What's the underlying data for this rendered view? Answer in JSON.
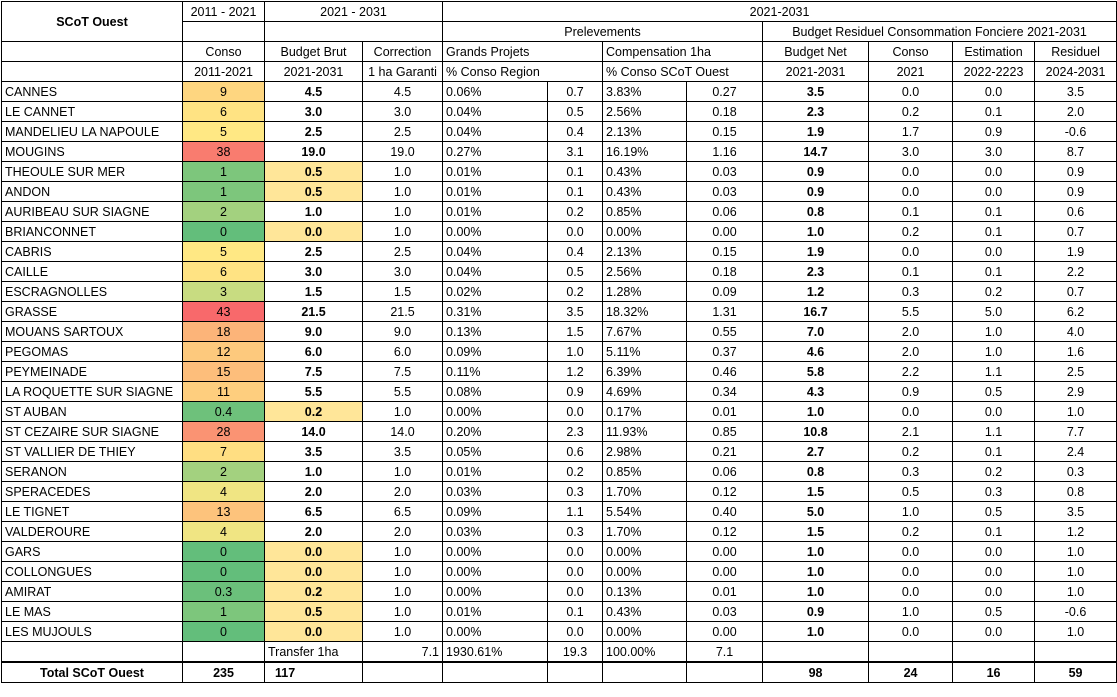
{
  "header": {
    "title": "SCoT Ouest",
    "period_2011": "2011 - 2021",
    "period_2021": "2021 - 2031",
    "period_2021b": "2021-2031",
    "prelevements": "Prelevements",
    "budget_residuel": "Budget Residuel Consommation Fonciere  2021-2031",
    "h_conso": "Conso",
    "h_budget_brut": "Budget Brut",
    "h_correction": "Correction",
    "h_grands_projets": "Grands Projets",
    "h_compensation": "Compensation 1ha",
    "h_budget_net": "Budget Net",
    "h_conso2": "Conso",
    "h_estimation": "Estimation",
    "h_residuel": "Residuel",
    "s_conso": "2011-2021",
    "s_budget_brut": "2021-2031",
    "s_correction": "1 ha Garanti",
    "s_grands_projets": "% Conso Region",
    "s_compensation": "% Conso SCoT Ouest",
    "s_budget_net": "2021-2031",
    "s_conso2": "2021",
    "s_estimation": "2022-2223",
    "s_residuel": "2024-2031"
  },
  "colors": {
    "red": "#f8696b",
    "orange_red": "#fa9a73",
    "orange": "#fdbf7b",
    "yellow": "#ffe283",
    "light_yellow": "#ffeb84",
    "yellow_green": "#d3df82",
    "light_green": "#b1d580",
    "green": "#63be7b",
    "budget_yellow": "#ffe699"
  },
  "rows": [
    {
      "name": "CANNES",
      "conso": "9",
      "conso_color": "#fed680",
      "brut": "4.5",
      "brut_hl": false,
      "corr": "4.5",
      "gp_pct": "0.06%",
      "gp": "0.7",
      "comp_pct": "3.83%",
      "comp": "0.27",
      "net": "3.5",
      "c21": "0.0",
      "est": "0.0",
      "res": "3.5"
    },
    {
      "name": "LE CANNET",
      "conso": "6",
      "conso_color": "#ffe383",
      "brut": "3.0",
      "brut_hl": false,
      "corr": "3.0",
      "gp_pct": "0.04%",
      "gp": "0.5",
      "comp_pct": "2.56%",
      "comp": "0.18",
      "net": "2.3",
      "c21": "0.2",
      "est": "0.1",
      "res": "2.0"
    },
    {
      "name": "MANDELIEU LA NAPOULE",
      "conso": "5",
      "conso_color": "#ffe884",
      "brut": "2.5",
      "brut_hl": false,
      "corr": "2.5",
      "gp_pct": "0.04%",
      "gp": "0.4",
      "comp_pct": "2.13%",
      "comp": "0.15",
      "net": "1.9",
      "c21": "1.7",
      "est": "0.9",
      "res": "-0.6"
    },
    {
      "name": "MOUGINS",
      "conso": "38",
      "conso_color": "#f97c6f",
      "brut": "19.0",
      "brut_hl": false,
      "corr": "19.0",
      "gp_pct": "0.27%",
      "gp": "3.1",
      "comp_pct": "16.19%",
      "comp": "1.16",
      "net": "14.7",
      "c21": "3.0",
      "est": "3.0",
      "res": "8.7"
    },
    {
      "name": "THEOULE SUR MER",
      "conso": "1",
      "conso_color": "#7dc67c",
      "brut": "0.5",
      "brut_hl": true,
      "corr": "1.0",
      "gp_pct": "0.01%",
      "gp": "0.1",
      "comp_pct": "0.43%",
      "comp": "0.03",
      "net": "0.9",
      "c21": "0.0",
      "est": "0.0",
      "res": "0.9"
    },
    {
      "name": "ANDON",
      "conso": "1",
      "conso_color": "#7dc67c",
      "brut": "0.5",
      "brut_hl": true,
      "corr": "1.0",
      "gp_pct": "0.01%",
      "gp": "0.1",
      "comp_pct": "0.43%",
      "comp": "0.03",
      "net": "0.9",
      "c21": "0.0",
      "est": "0.0",
      "res": "0.9"
    },
    {
      "name": "AURIBEAU SUR SIAGNE",
      "conso": "2",
      "conso_color": "#a3d17f",
      "brut": "1.0",
      "brut_hl": false,
      "corr": "1.0",
      "gp_pct": "0.01%",
      "gp": "0.2",
      "comp_pct": "0.85%",
      "comp": "0.06",
      "net": "0.8",
      "c21": "0.1",
      "est": "0.1",
      "res": "0.6"
    },
    {
      "name": "BRIANCONNET",
      "conso": "0",
      "conso_color": "#63be7b",
      "brut": "0.0",
      "brut_hl": true,
      "corr": "1.0",
      "gp_pct": "0.00%",
      "gp": "0.0",
      "comp_pct": "0.00%",
      "comp": "0.00",
      "net": "1.0",
      "c21": "0.2",
      "est": "0.1",
      "res": "0.7"
    },
    {
      "name": "CABRIS",
      "conso": "5",
      "conso_color": "#ffe884",
      "brut": "2.5",
      "brut_hl": false,
      "corr": "2.5",
      "gp_pct": "0.04%",
      "gp": "0.4",
      "comp_pct": "2.13%",
      "comp": "0.15",
      "net": "1.9",
      "c21": "0.0",
      "est": "0.0",
      "res": "1.9"
    },
    {
      "name": "CAILLE",
      "conso": "6",
      "conso_color": "#ffe383",
      "brut": "3.0",
      "brut_hl": false,
      "corr": "3.0",
      "gp_pct": "0.04%",
      "gp": "0.5",
      "comp_pct": "2.56%",
      "comp": "0.18",
      "net": "2.3",
      "c21": "0.1",
      "est": "0.1",
      "res": "2.2"
    },
    {
      "name": "ESCRAGNOLLES",
      "conso": "3",
      "conso_color": "#c8dc81",
      "brut": "1.5",
      "brut_hl": false,
      "corr": "1.5",
      "gp_pct": "0.02%",
      "gp": "0.2",
      "comp_pct": "1.28%",
      "comp": "0.09",
      "net": "1.2",
      "c21": "0.3",
      "est": "0.2",
      "res": "0.7"
    },
    {
      "name": "GRASSE",
      "conso": "43",
      "conso_color": "#f8696b",
      "brut": "21.5",
      "brut_hl": false,
      "corr": "21.5",
      "gp_pct": "0.31%",
      "gp": "3.5",
      "comp_pct": "18.32%",
      "comp": "1.31",
      "net": "16.7",
      "c21": "5.5",
      "est": "5.0",
      "res": "6.2"
    },
    {
      "name": "MOUANS SARTOUX",
      "conso": "18",
      "conso_color": "#fcb479",
      "brut": "9.0",
      "brut_hl": false,
      "corr": "9.0",
      "gp_pct": "0.13%",
      "gp": "1.5",
      "comp_pct": "7.67%",
      "comp": "0.55",
      "net": "7.0",
      "c21": "2.0",
      "est": "1.0",
      "res": "4.0"
    },
    {
      "name": "PEGOMAS",
      "conso": "12",
      "conso_color": "#fdc97d",
      "brut": "6.0",
      "brut_hl": false,
      "corr": "6.0",
      "gp_pct": "0.09%",
      "gp": "1.0",
      "comp_pct": "5.11%",
      "comp": "0.37",
      "net": "4.6",
      "c21": "2.0",
      "est": "1.0",
      "res": "1.6"
    },
    {
      "name": "PEYMEINADE",
      "conso": "15",
      "conso_color": "#fdbe7b",
      "brut": "7.5",
      "brut_hl": false,
      "corr": "7.5",
      "gp_pct": "0.11%",
      "gp": "1.2",
      "comp_pct": "6.39%",
      "comp": "0.46",
      "net": "5.8",
      "c21": "2.2",
      "est": "1.1",
      "res": "2.5"
    },
    {
      "name": "LA ROQUETTE SUR SIAGNE",
      "conso": "11",
      "conso_color": "#fece7e",
      "brut": "5.5",
      "brut_hl": false,
      "corr": "5.5",
      "gp_pct": "0.08%",
      "gp": "0.9",
      "comp_pct": "4.69%",
      "comp": "0.34",
      "net": "4.3",
      "c21": "0.9",
      "est": "0.5",
      "res": "2.9"
    },
    {
      "name": "ST AUBAN",
      "conso": "0.4",
      "conso_color": "#6ec17b",
      "brut": "0.2",
      "brut_hl": true,
      "corr": "1.0",
      "gp_pct": "0.00%",
      "gp": "0.0",
      "comp_pct": "0.17%",
      "comp": "0.01",
      "net": "1.0",
      "c21": "0.0",
      "est": "0.0",
      "res": "1.0"
    },
    {
      "name": "ST CEZAIRE SUR SIAGNE",
      "conso": "28",
      "conso_color": "#fa9373",
      "brut": "14.0",
      "brut_hl": false,
      "corr": "14.0",
      "gp_pct": "0.20%",
      "gp": "2.3",
      "comp_pct": "11.93%",
      "comp": "0.85",
      "net": "10.8",
      "c21": "2.1",
      "est": "1.1",
      "res": "7.7"
    },
    {
      "name": "ST VALLIER DE THIEY",
      "conso": "7",
      "conso_color": "#ffde82",
      "brut": "3.5",
      "brut_hl": false,
      "corr": "3.5",
      "gp_pct": "0.05%",
      "gp": "0.6",
      "comp_pct": "2.98%",
      "comp": "0.21",
      "net": "2.7",
      "c21": "0.2",
      "est": "0.1",
      "res": "2.4"
    },
    {
      "name": "SERANON",
      "conso": "2",
      "conso_color": "#a3d17f",
      "brut": "1.0",
      "brut_hl": false,
      "corr": "1.0",
      "gp_pct": "0.01%",
      "gp": "0.2",
      "comp_pct": "0.85%",
      "comp": "0.06",
      "net": "0.8",
      "c21": "0.3",
      "est": "0.2",
      "res": "0.3"
    },
    {
      "name": "SPERACEDES",
      "conso": "4",
      "conso_color": "#f0e583",
      "brut": "2.0",
      "brut_hl": false,
      "corr": "2.0",
      "gp_pct": "0.03%",
      "gp": "0.3",
      "comp_pct": "1.70%",
      "comp": "0.12",
      "net": "1.5",
      "c21": "0.5",
      "est": "0.3",
      "res": "0.8"
    },
    {
      "name": "LE TIGNET",
      "conso": "13",
      "conso_color": "#fdc37c",
      "brut": "6.5",
      "brut_hl": false,
      "corr": "6.5",
      "gp_pct": "0.09%",
      "gp": "1.1",
      "comp_pct": "5.54%",
      "comp": "0.40",
      "net": "5.0",
      "c21": "1.0",
      "est": "0.5",
      "res": "3.5"
    },
    {
      "name": "VALDEROURE",
      "conso": "4",
      "conso_color": "#f0e583",
      "brut": "2.0",
      "brut_hl": false,
      "corr": "2.0",
      "gp_pct": "0.03%",
      "gp": "0.3",
      "comp_pct": "1.70%",
      "comp": "0.12",
      "net": "1.5",
      "c21": "0.2",
      "est": "0.1",
      "res": "1.2"
    },
    {
      "name": "GARS",
      "conso": "0",
      "conso_color": "#63be7b",
      "brut": "0.0",
      "brut_hl": true,
      "corr": "1.0",
      "gp_pct": "0.00%",
      "gp": "0.0",
      "comp_pct": "0.00%",
      "comp": "0.00",
      "net": "1.0",
      "c21": "0.0",
      "est": "0.0",
      "res": "1.0"
    },
    {
      "name": "COLLONGUES",
      "conso": "0",
      "conso_color": "#63be7b",
      "brut": "0.0",
      "brut_hl": true,
      "corr": "1.0",
      "gp_pct": "0.00%",
      "gp": "0.0",
      "comp_pct": "0.00%",
      "comp": "0.00",
      "net": "1.0",
      "c21": "0.0",
      "est": "0.0",
      "res": "1.0"
    },
    {
      "name": "AMIRAT",
      "conso": "0.3",
      "conso_color": "#6bc07b",
      "brut": "0.2",
      "brut_hl": true,
      "corr": "1.0",
      "gp_pct": "0.00%",
      "gp": "0.0",
      "comp_pct": "0.13%",
      "comp": "0.01",
      "net": "1.0",
      "c21": "0.0",
      "est": "0.0",
      "res": "1.0"
    },
    {
      "name": "LE MAS",
      "conso": "1",
      "conso_color": "#7dc67c",
      "brut": "0.5",
      "brut_hl": true,
      "corr": "1.0",
      "gp_pct": "0.01%",
      "gp": "0.1",
      "comp_pct": "0.43%",
      "comp": "0.03",
      "net": "0.9",
      "c21": "1.0",
      "est": "0.5",
      "res": "-0.6"
    },
    {
      "name": "LES MUJOULS",
      "conso": "0",
      "conso_color": "#63be7b",
      "brut": "0.0",
      "brut_hl": true,
      "corr": "1.0",
      "gp_pct": "0.00%",
      "gp": "0.0",
      "comp_pct": "0.00%",
      "comp": "0.00",
      "net": "1.0",
      "c21": "0.0",
      "est": "0.0",
      "res": "1.0"
    }
  ],
  "transfer": {
    "label": "Transfer 1ha",
    "corr": "7.1",
    "gp_pct": "1930.61%",
    "gp": "19.3",
    "comp_pct": "100.00%",
    "comp": "7.1"
  },
  "total": {
    "label": "Total SCoT Ouest",
    "conso": "235",
    "brut": "117",
    "net": "98",
    "c21": "24",
    "est": "16",
    "res": "59"
  }
}
